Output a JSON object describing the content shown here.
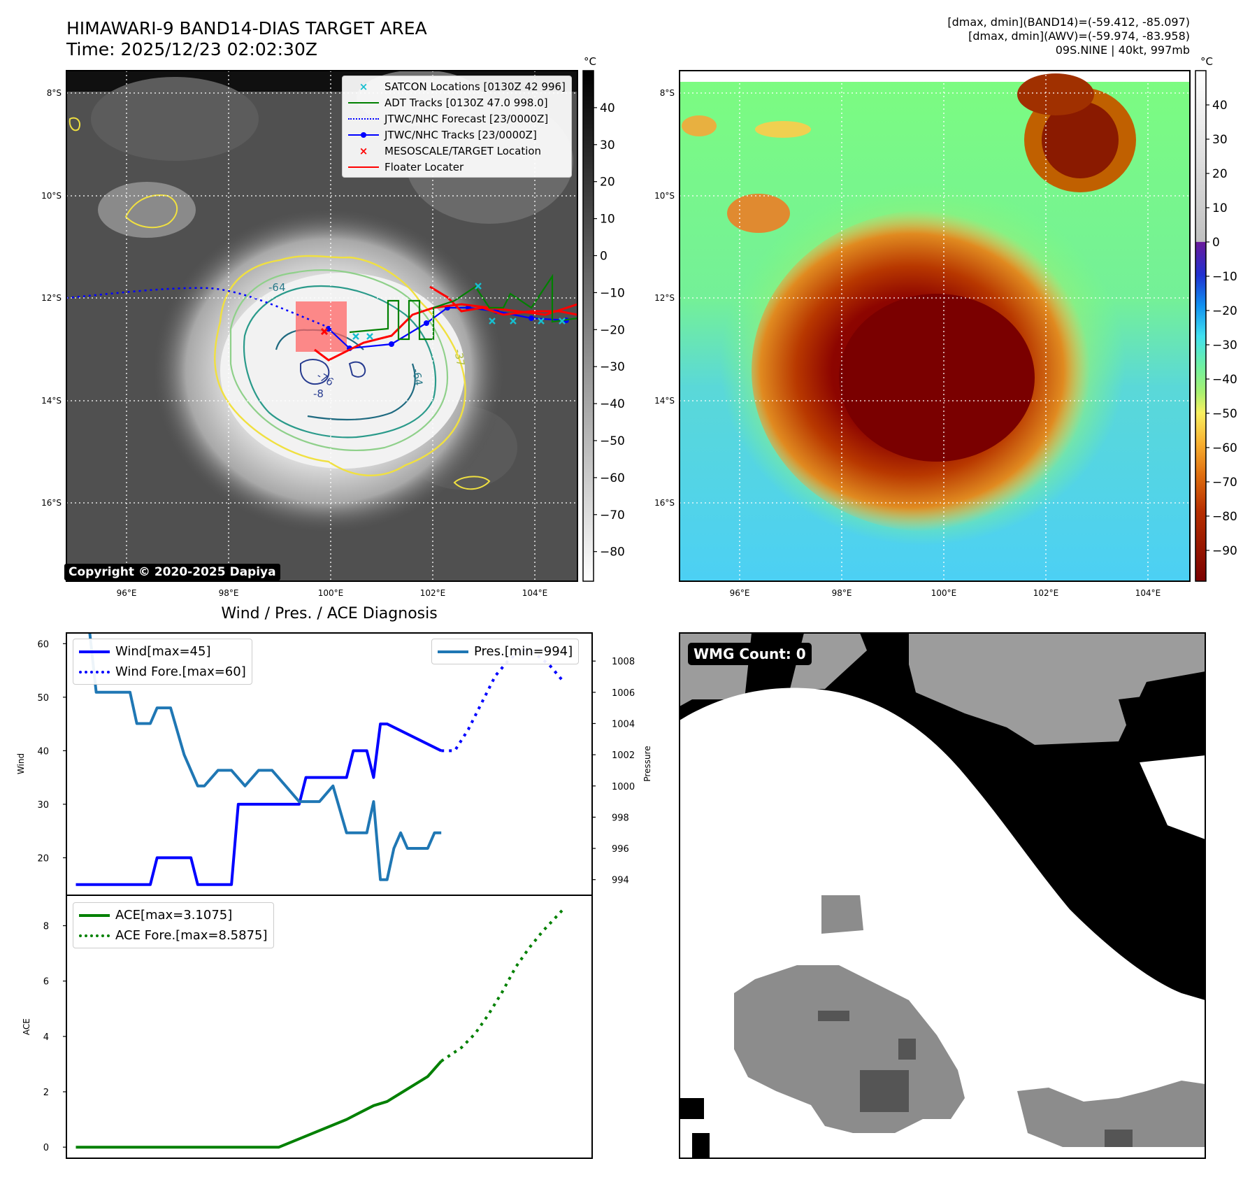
{
  "header": {
    "title_line1": "HIMAWARI-9 BAND14-DIAS TARGET AREA",
    "title_line2": "Time: 2025/12/23 02:02:30Z",
    "info_line1": "[dmax, dmin](BAND14)=(-59.412, -85.097)",
    "info_line2": "[dmax, dmin](AWV)=(-59.974, -83.958)",
    "info_line3": "09S.NINE | 40kt, 997mb"
  },
  "map": {
    "lat_labels": [
      "8°S",
      "10°S",
      "12°S",
      "14°S",
      "16°S"
    ],
    "lon_labels": [
      "96°E",
      "98°E",
      "100°E",
      "102°E",
      "104°E"
    ],
    "contour_labels": [
      "-64",
      "-64",
      "-76",
      "-8",
      "-37",
      "-64"
    ],
    "copyright": "Copyright © 2020-2025 Dapiya",
    "legend": [
      {
        "label": "SATCON Locations [0130Z 42 996]",
        "color": "#17becf",
        "style": "x-marker"
      },
      {
        "label": "ADT Tracks [0130Z 47.0 998.0]",
        "color": "#008000",
        "style": "line"
      },
      {
        "label": "JTWC/NHC Forecast [23/0000Z]",
        "color": "#0000ff",
        "style": "dotted"
      },
      {
        "label": "JTWC/NHC Tracks [23/0000Z]",
        "color": "#0000ff",
        "style": "line-dot"
      },
      {
        "label": "MESOSCALE/TARGET Location",
        "color": "#ff0000",
        "style": "x-marker"
      },
      {
        "label": "Floater Locater",
        "color": "#ff0000",
        "style": "line"
      }
    ]
  },
  "colorbar_gray": {
    "unit": "°C",
    "ticks": [
      "40",
      "30",
      "20",
      "10",
      "0",
      "−10",
      "−20",
      "−30",
      "−40",
      "−50",
      "−60",
      "−70",
      "−80"
    ]
  },
  "colorbar_color": {
    "unit": "°C",
    "ticks": [
      "40",
      "30",
      "20",
      "10",
      "0",
      "−10",
      "−20",
      "−30",
      "−40",
      "−50",
      "−60",
      "−70",
      "−80",
      "−90"
    ]
  },
  "wmg": {
    "label": "WMG Count: 0"
  },
  "colors": {
    "wind": "#0000ff",
    "pres": "#1f77b4",
    "ace": "#008000"
  },
  "chart_data": [
    {
      "type": "line",
      "title": "Wind / Pres. / ACE Diagnosis",
      "xlabel": "",
      "ylabel": "Wind",
      "ylim": [
        13,
        62
      ],
      "yticks": [
        "60",
        "50",
        "40",
        "30",
        "20"
      ],
      "y2label": "Pressure",
      "y2lim": [
        993,
        1009.8
      ],
      "y2ticks": [
        "1008",
        "1006",
        "1004",
        "1002",
        "1000",
        "998",
        "996",
        "994"
      ],
      "series": [
        {
          "name": "Wind[max=45]",
          "axis": "left",
          "style": "solid",
          "x": [
            0,
            5,
            6,
            11,
            12,
            17,
            18,
            23,
            24,
            33,
            34,
            40,
            41,
            43,
            44,
            45,
            46,
            54
          ],
          "values": [
            15,
            15,
            15,
            15,
            20,
            20,
            15,
            15,
            30,
            30,
            35,
            35,
            40,
            40,
            35,
            45,
            45,
            40
          ]
        },
        {
          "name": "Wind Fore.[max=60]",
          "axis": "left",
          "style": "dotted",
          "x": [
            54,
            56,
            58,
            60,
            62,
            64,
            66,
            68,
            70,
            72
          ],
          "values": [
            40,
            40,
            44,
            49,
            54,
            57,
            59,
            58,
            56,
            53
          ]
        },
        {
          "name": "Pres.[min=994]",
          "axis": "right",
          "style": "solid",
          "x": [
            0,
            2,
            3,
            8,
            9,
            11,
            12,
            14,
            16,
            18,
            19,
            21,
            23,
            25,
            27,
            29,
            31,
            33,
            34,
            36,
            38,
            40,
            41,
            43,
            44,
            45,
            46,
            47,
            48,
            49,
            50,
            52,
            53,
            54
          ],
          "values": [
            1010,
            1010,
            1006,
            1006,
            1004,
            1004,
            1005,
            1005,
            1002,
            1000,
            1000,
            1001,
            1001,
            1000,
            1001,
            1001,
            1000,
            999,
            999,
            999,
            1000,
            997,
            997,
            997,
            999,
            994,
            994,
            996,
            997,
            996,
            996,
            996,
            997,
            997
          ]
        }
      ],
      "legend": [
        "Wind[max=45]",
        "Wind Fore.[max=60]",
        "Pres.[min=994]"
      ]
    },
    {
      "type": "line",
      "title": "",
      "xlabel": "",
      "ylabel": "ACE",
      "ylim": [
        -0.4,
        9.1
      ],
      "yticks": [
        "8",
        "6",
        "4",
        "2",
        "0"
      ],
      "series": [
        {
          "name": "ACE[max=3.1075]",
          "style": "solid",
          "x": [
            0,
            30,
            40,
            44,
            46,
            48,
            50,
            52,
            54
          ],
          "values": [
            0,
            0,
            1.0,
            1.5,
            1.65,
            1.95,
            2.25,
            2.55,
            3.1075
          ]
        },
        {
          "name": "ACE Fore.[max=8.5875]",
          "style": "dotted",
          "x": [
            54,
            57,
            59,
            61,
            63,
            65,
            67,
            69,
            72
          ],
          "values": [
            3.1075,
            3.6,
            4.1,
            4.8,
            5.6,
            6.5,
            7.2,
            7.8,
            8.5875
          ]
        }
      ],
      "legend": [
        "ACE[max=3.1075]",
        "ACE Fore.[max=8.5875]"
      ]
    }
  ]
}
